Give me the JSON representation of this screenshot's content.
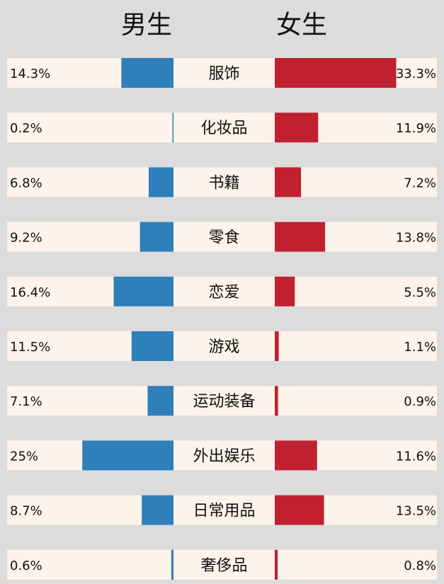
{
  "chart_data": {
    "type": "bar",
    "subtype": "butterfly",
    "series": [
      {
        "name": "男生",
        "values": [
          14.3,
          0.2,
          6.8,
          9.2,
          16.4,
          11.5,
          7.1,
          25,
          8.7,
          0.6
        ],
        "labels": [
          "14.3%",
          "0.2%",
          "6.8%",
          "9.2%",
          "16.4%",
          "11.5%",
          "7.1%",
          "25%",
          "8.7%",
          "0.6%"
        ]
      },
      {
        "name": "女生",
        "values": [
          33.3,
          11.9,
          7.2,
          13.8,
          5.5,
          1.1,
          0.9,
          11.6,
          13.5,
          0.8
        ],
        "labels": [
          "33.3%",
          "11.9%",
          "7.2%",
          "13.8%",
          "5.5%",
          "1.1%",
          "0.9%",
          "11.6%",
          "13.5%",
          "0.8%"
        ]
      }
    ],
    "categories": [
      "服饰",
      "化妆品",
      "书籍",
      "零食",
      "恋爱",
      "游戏",
      "运动装备",
      "外出娱乐",
      "日常用品",
      "奢侈品"
    ],
    "unit": "%",
    "legend": "top",
    "grid": false
  },
  "colors": {
    "background": "#dcdcdc",
    "row": "#fcf3ea",
    "male": "#2e7fba",
    "female": "#c0202f",
    "text": "#111111"
  }
}
